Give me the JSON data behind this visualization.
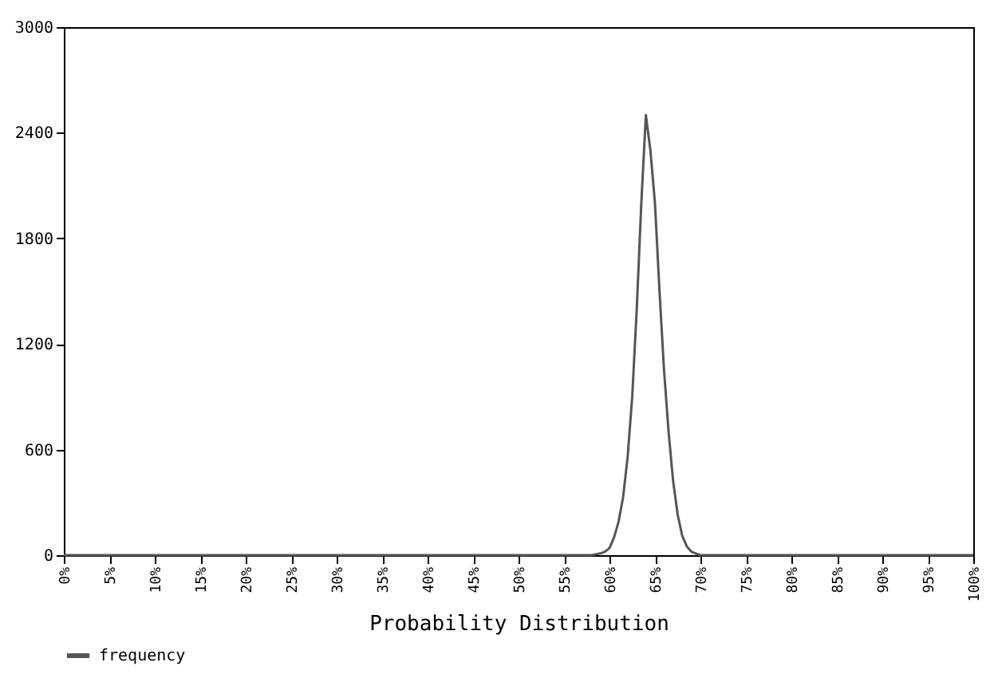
{
  "chart_data": {
    "type": "line",
    "xlabel": "Probability Distribution",
    "x": [
      0,
      58,
      59,
      59.5,
      60,
      60.5,
      61,
      61.5,
      62,
      62.5,
      63,
      63.5,
      64,
      64.5,
      65,
      65.5,
      66,
      66.5,
      67,
      67.5,
      68,
      68.5,
      69,
      69.5,
      70,
      100
    ],
    "series": [
      {
        "name": "frequency",
        "color": "#555555",
        "values": [
          0,
          0,
          10,
          20,
          40,
          100,
          190,
          330,
          560,
          900,
          1400,
          2000,
          2500,
          2300,
          2000,
          1500,
          1050,
          700,
          420,
          230,
          110,
          50,
          20,
          10,
          0,
          0
        ]
      }
    ],
    "xlim": [
      0,
      100
    ],
    "xticks": [
      {
        "value": 0,
        "label": "0%"
      },
      {
        "value": 5,
        "label": "5%"
      },
      {
        "value": 10,
        "label": "10%"
      },
      {
        "value": 15,
        "label": "15%"
      },
      {
        "value": 20,
        "label": "20%"
      },
      {
        "value": 25,
        "label": "25%"
      },
      {
        "value": 30,
        "label": "30%"
      },
      {
        "value": 35,
        "label": "35%"
      },
      {
        "value": 40,
        "label": "40%"
      },
      {
        "value": 45,
        "label": "45%"
      },
      {
        "value": 50,
        "label": "50%"
      },
      {
        "value": 55,
        "label": "55%"
      },
      {
        "value": 60,
        "label": "60%"
      },
      {
        "value": 65,
        "label": "65%"
      },
      {
        "value": 70,
        "label": "70%"
      },
      {
        "value": 75,
        "label": "75%"
      },
      {
        "value": 80,
        "label": "80%"
      },
      {
        "value": 85,
        "label": "85%"
      },
      {
        "value": 90,
        "label": "90%"
      },
      {
        "value": 95,
        "label": "95%"
      },
      {
        "value": 100,
        "label": "100%"
      }
    ],
    "ylim": [
      0,
      3000
    ],
    "yticks": [
      0,
      600,
      1200,
      1800,
      2400,
      3000
    ],
    "grid": false,
    "legend": "bottom",
    "marker": "none",
    "line_style": "solid"
  }
}
